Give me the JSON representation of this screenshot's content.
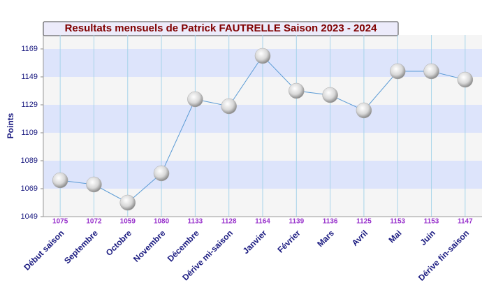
{
  "chart_data": {
    "type": "line",
    "title": "Resultats mensuels de Patrick FAUTRELLE Saison 2023 - 2024",
    "y_label": "Points",
    "categories": [
      "Début saison",
      "Septembre",
      "Octobre",
      "Novembre",
      "Décembre",
      "Dérive mi-saison",
      "Janvier",
      "Février",
      "Mars",
      "Avril",
      "Mai",
      "Juin",
      "Dérive fin-saison"
    ],
    "series": [
      {
        "name": "Points",
        "color": "#5b9bd5",
        "values": [
          1075,
          1072,
          1059,
          1080,
          1133,
          1128,
          1164,
          1139,
          1136,
          1125,
          1153,
          1153,
          1147
        ]
      }
    ],
    "ylim": [
      1049,
      1179
    ],
    "yticks": [
      1049,
      1069,
      1089,
      1109,
      1129,
      1149,
      1169
    ],
    "grid": true
  }
}
